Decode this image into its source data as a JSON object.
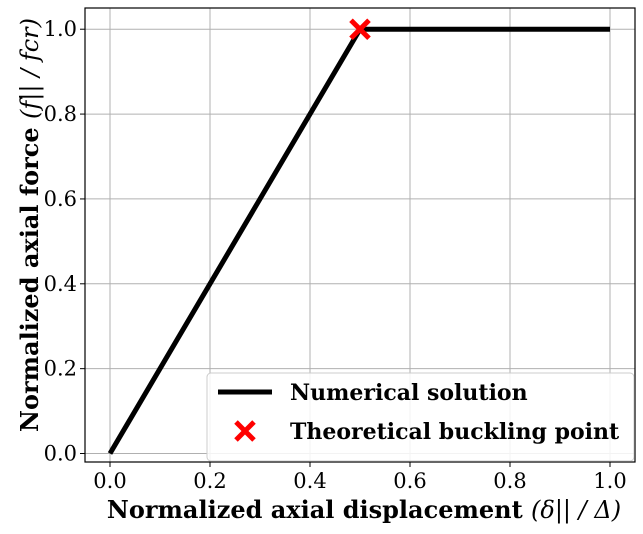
{
  "chart_data": {
    "type": "line",
    "title": "",
    "xlabel": "Normalized axial displacement",
    "xlabel_math": "(δ|| / Δ)",
    "ylabel": "Normalized axial force",
    "ylabel_math": "(f|| / fcr)",
    "xlim": [
      -0.05,
      1.05
    ],
    "ylim": [
      -0.02,
      1.05
    ],
    "xticks": [
      "0.0",
      "0.2",
      "0.4",
      "0.6",
      "0.8",
      "1.0"
    ],
    "yticks": [
      "0.0",
      "0.2",
      "0.4",
      "0.6",
      "0.8",
      "1.0"
    ],
    "grid": true,
    "legend_position": "lower-right",
    "series": [
      {
        "name": "Numerical solution",
        "type": "line",
        "color": "#000000",
        "x": [
          0.0,
          0.5,
          1.0
        ],
        "y": [
          0.0,
          1.0,
          1.0
        ]
      },
      {
        "name": "Theoretical buckling point",
        "type": "scatter",
        "marker": "x",
        "color": "#ff0000",
        "x": [
          0.5
        ],
        "y": [
          1.0
        ]
      }
    ]
  }
}
